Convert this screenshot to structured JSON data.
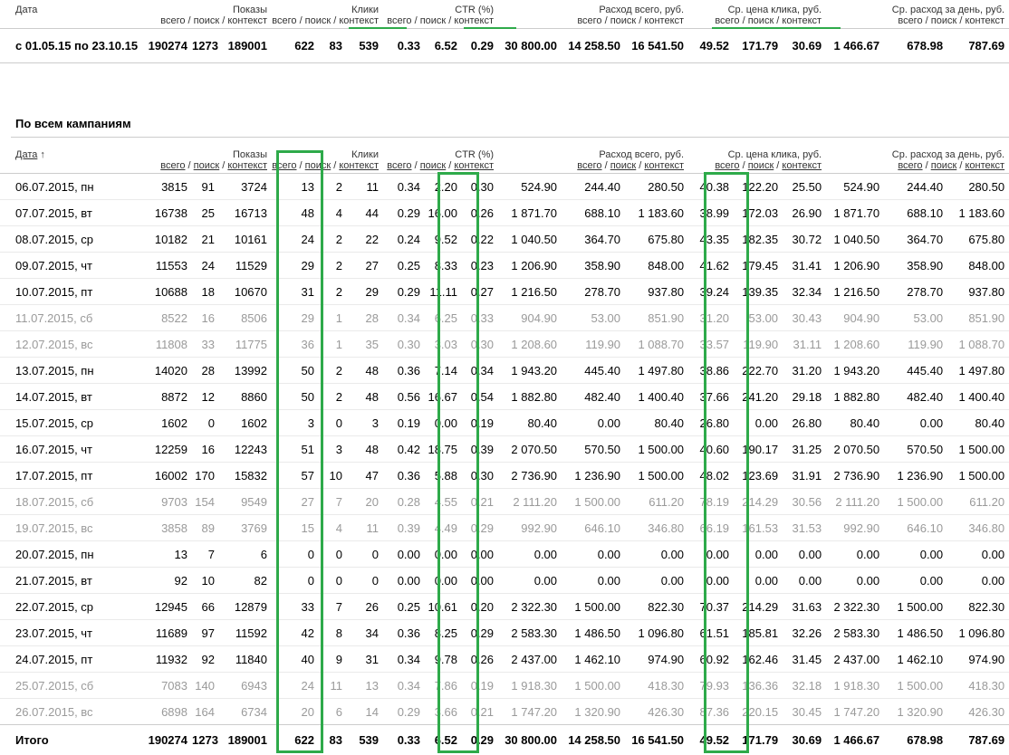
{
  "summary_table": {
    "header_groups": {
      "date": "Дата",
      "shows": "Показы",
      "clicks": "Клики",
      "ctr": "CTR (%)",
      "spend": "Расход всего, руб.",
      "cpc": "Ср. цена клика, руб.",
      "daily": "Ср. расход за день, руб."
    },
    "subheader": "всего / поиск / контекст",
    "row": [
      "с 01.05.15 по 23.10.15",
      "190274",
      "1273",
      "189001",
      "622",
      "83",
      "539",
      "0.33",
      "6.52",
      "0.29",
      "30 800.00",
      "14 258.50",
      "16 541.50",
      "49.52",
      "171.79",
      "30.69",
      "1 466.67",
      "678.98",
      "787.69"
    ]
  },
  "section_title": "По всем кампаниям",
  "detail_table": {
    "date_header": "Дата",
    "sort_indicator": "↑",
    "header_groups": {
      "shows": "Показы",
      "clicks": "Клики",
      "ctr": "CTR (%)",
      "spend": "Расход всего, руб.",
      "cpc": "Ср. цена клика, руб.",
      "daily": "Ср. расход за день, руб."
    },
    "sub": {
      "total": "всего",
      "search": "поиск",
      "context": "контекст",
      "sep": " / "
    },
    "rows": [
      {
        "weekend": false,
        "cells": [
          "06.07.2015, пн",
          "3815",
          "91",
          "3724",
          "13",
          "2",
          "11",
          "0.34",
          "2.20",
          "0.30",
          "524.90",
          "244.40",
          "280.50",
          "40.38",
          "122.20",
          "25.50",
          "524.90",
          "244.40",
          "280.50"
        ]
      },
      {
        "weekend": false,
        "cells": [
          "07.07.2015, вт",
          "16738",
          "25",
          "16713",
          "48",
          "4",
          "44",
          "0.29",
          "16.00",
          "0.26",
          "1 871.70",
          "688.10",
          "1 183.60",
          "38.99",
          "172.03",
          "26.90",
          "1 871.70",
          "688.10",
          "1 183.60"
        ]
      },
      {
        "weekend": false,
        "cells": [
          "08.07.2015, ср",
          "10182",
          "21",
          "10161",
          "24",
          "2",
          "22",
          "0.24",
          "9.52",
          "0.22",
          "1 040.50",
          "364.70",
          "675.80",
          "43.35",
          "182.35",
          "30.72",
          "1 040.50",
          "364.70",
          "675.80"
        ]
      },
      {
        "weekend": false,
        "cells": [
          "09.07.2015, чт",
          "11553",
          "24",
          "11529",
          "29",
          "2",
          "27",
          "0.25",
          "8.33",
          "0.23",
          "1 206.90",
          "358.90",
          "848.00",
          "41.62",
          "179.45",
          "31.41",
          "1 206.90",
          "358.90",
          "848.00"
        ]
      },
      {
        "weekend": false,
        "cells": [
          "10.07.2015, пт",
          "10688",
          "18",
          "10670",
          "31",
          "2",
          "29",
          "0.29",
          "11.11",
          "0.27",
          "1 216.50",
          "278.70",
          "937.80",
          "39.24",
          "139.35",
          "32.34",
          "1 216.50",
          "278.70",
          "937.80"
        ]
      },
      {
        "weekend": true,
        "cells": [
          "11.07.2015, сб",
          "8522",
          "16",
          "8506",
          "29",
          "1",
          "28",
          "0.34",
          "6.25",
          "0.33",
          "904.90",
          "53.00",
          "851.90",
          "31.20",
          "53.00",
          "30.43",
          "904.90",
          "53.00",
          "851.90"
        ]
      },
      {
        "weekend": true,
        "cells": [
          "12.07.2015, вс",
          "11808",
          "33",
          "11775",
          "36",
          "1",
          "35",
          "0.30",
          "3.03",
          "0.30",
          "1 208.60",
          "119.90",
          "1 088.70",
          "33.57",
          "119.90",
          "31.11",
          "1 208.60",
          "119.90",
          "1 088.70"
        ]
      },
      {
        "weekend": false,
        "cells": [
          "13.07.2015, пн",
          "14020",
          "28",
          "13992",
          "50",
          "2",
          "48",
          "0.36",
          "7.14",
          "0.34",
          "1 943.20",
          "445.40",
          "1 497.80",
          "38.86",
          "222.70",
          "31.20",
          "1 943.20",
          "445.40",
          "1 497.80"
        ]
      },
      {
        "weekend": false,
        "cells": [
          "14.07.2015, вт",
          "8872",
          "12",
          "8860",
          "50",
          "2",
          "48",
          "0.56",
          "16.67",
          "0.54",
          "1 882.80",
          "482.40",
          "1 400.40",
          "37.66",
          "241.20",
          "29.18",
          "1 882.80",
          "482.40",
          "1 400.40"
        ]
      },
      {
        "weekend": false,
        "cells": [
          "15.07.2015, ср",
          "1602",
          "0",
          "1602",
          "3",
          "0",
          "3",
          "0.19",
          "0.00",
          "0.19",
          "80.40",
          "0.00",
          "80.40",
          "26.80",
          "0.00",
          "26.80",
          "80.40",
          "0.00",
          "80.40"
        ]
      },
      {
        "weekend": false,
        "cells": [
          "16.07.2015, чт",
          "12259",
          "16",
          "12243",
          "51",
          "3",
          "48",
          "0.42",
          "18.75",
          "0.39",
          "2 070.50",
          "570.50",
          "1 500.00",
          "40.60",
          "190.17",
          "31.25",
          "2 070.50",
          "570.50",
          "1 500.00"
        ]
      },
      {
        "weekend": false,
        "cells": [
          "17.07.2015, пт",
          "16002",
          "170",
          "15832",
          "57",
          "10",
          "47",
          "0.36",
          "5.88",
          "0.30",
          "2 736.90",
          "1 236.90",
          "1 500.00",
          "48.02",
          "123.69",
          "31.91",
          "2 736.90",
          "1 236.90",
          "1 500.00"
        ]
      },
      {
        "weekend": true,
        "cells": [
          "18.07.2015, сб",
          "9703",
          "154",
          "9549",
          "27",
          "7",
          "20",
          "0.28",
          "4.55",
          "0.21",
          "2 111.20",
          "1 500.00",
          "611.20",
          "78.19",
          "214.29",
          "30.56",
          "2 111.20",
          "1 500.00",
          "611.20"
        ]
      },
      {
        "weekend": true,
        "cells": [
          "19.07.2015, вс",
          "3858",
          "89",
          "3769",
          "15",
          "4",
          "11",
          "0.39",
          "4.49",
          "0.29",
          "992.90",
          "646.10",
          "346.80",
          "66.19",
          "161.53",
          "31.53",
          "992.90",
          "646.10",
          "346.80"
        ]
      },
      {
        "weekend": false,
        "cells": [
          "20.07.2015, пн",
          "13",
          "7",
          "6",
          "0",
          "0",
          "0",
          "0.00",
          "0.00",
          "0.00",
          "0.00",
          "0.00",
          "0.00",
          "0.00",
          "0.00",
          "0.00",
          "0.00",
          "0.00",
          "0.00"
        ]
      },
      {
        "weekend": false,
        "cells": [
          "21.07.2015, вт",
          "92",
          "10",
          "82",
          "0",
          "0",
          "0",
          "0.00",
          "0.00",
          "0.00",
          "0.00",
          "0.00",
          "0.00",
          "0.00",
          "0.00",
          "0.00",
          "0.00",
          "0.00",
          "0.00"
        ]
      },
      {
        "weekend": false,
        "cells": [
          "22.07.2015, ср",
          "12945",
          "66",
          "12879",
          "33",
          "7",
          "26",
          "0.25",
          "10.61",
          "0.20",
          "2 322.30",
          "1 500.00",
          "822.30",
          "70.37",
          "214.29",
          "31.63",
          "2 322.30",
          "1 500.00",
          "822.30"
        ]
      },
      {
        "weekend": false,
        "cells": [
          "23.07.2015, чт",
          "11689",
          "97",
          "11592",
          "42",
          "8",
          "34",
          "0.36",
          "8.25",
          "0.29",
          "2 583.30",
          "1 486.50",
          "1 096.80",
          "61.51",
          "185.81",
          "32.26",
          "2 583.30",
          "1 486.50",
          "1 096.80"
        ]
      },
      {
        "weekend": false,
        "cells": [
          "24.07.2015, пт",
          "11932",
          "92",
          "11840",
          "40",
          "9",
          "31",
          "0.34",
          "9.78",
          "0.26",
          "2 437.00",
          "1 462.10",
          "974.90",
          "60.92",
          "162.46",
          "31.45",
          "2 437.00",
          "1 462.10",
          "974.90"
        ]
      },
      {
        "weekend": true,
        "cells": [
          "25.07.2015, сб",
          "7083",
          "140",
          "6943",
          "24",
          "11",
          "13",
          "0.34",
          "7.86",
          "0.19",
          "1 918.30",
          "1 500.00",
          "418.30",
          "79.93",
          "136.36",
          "32.18",
          "1 918.30",
          "1 500.00",
          "418.30"
        ]
      },
      {
        "weekend": true,
        "cells": [
          "26.07.2015, вс",
          "6898",
          "164",
          "6734",
          "20",
          "6",
          "14",
          "0.29",
          "3.66",
          "0.21",
          "1 747.20",
          "1 320.90",
          "426.30",
          "87.36",
          "220.15",
          "30.45",
          "1 747.20",
          "1 320.90",
          "426.30"
        ]
      }
    ],
    "total": [
      "Итого",
      "190274",
      "1273",
      "189001",
      "622",
      "83",
      "539",
      "0.33",
      "6.52",
      "0.29",
      "30 800.00",
      "14 258.50",
      "16 541.50",
      "49.52",
      "171.79",
      "30.69",
      "1 466.67",
      "678.98",
      "787.69"
    ]
  },
  "highlight_color": "#2eaa4a",
  "weekend_text_color": "#9a9a9a"
}
